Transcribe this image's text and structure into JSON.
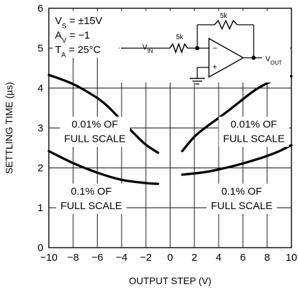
{
  "chart_data": {
    "type": "line",
    "title": "",
    "xlabel": "OUTPUT STEP (V)",
    "ylabel": "SETTLING TIME (µs)",
    "xlim": [
      -10,
      10
    ],
    "ylim": [
      0,
      6
    ],
    "xticks": [
      -10,
      -8,
      -6,
      -4,
      -2,
      0,
      2,
      4,
      6,
      8,
      10
    ],
    "xtick_labels": [
      "−10",
      "−8",
      "−6",
      "−4",
      "−2",
      "0",
      "2",
      "4",
      "6",
      "8",
      "10"
    ],
    "yticks": [
      0,
      1,
      2,
      3,
      4,
      5,
      6
    ],
    "ytick_labels": [
      "0",
      "1",
      "2",
      "3",
      "4",
      "5",
      "6"
    ],
    "grid": true,
    "series": [
      {
        "label": "0.01% OF FULL SCALE",
        "label_lines": [
          "0.01% OF",
          "FULL SCALE"
        ],
        "side": "negative",
        "x": [
          -10,
          -8,
          -6,
          -5,
          -4,
          -3,
          -2,
          -1
        ],
        "y": [
          4.33,
          4.1,
          3.75,
          3.5,
          3.18,
          2.87,
          2.58,
          2.38
        ]
      },
      {
        "label": "0.01% OF FULL SCALE",
        "label_lines": [
          "0.01% OF",
          "FULL SCALE"
        ],
        "side": "positive",
        "x": [
          1,
          2,
          3,
          4,
          5,
          6,
          7,
          8,
          9,
          10
        ],
        "y": [
          2.42,
          2.78,
          3.03,
          3.25,
          3.48,
          3.72,
          3.95,
          4.12,
          4.25,
          4.3
        ]
      },
      {
        "label": "0.1% OF FULL SCALE",
        "label_lines": [
          "0.1% OF",
          "FULL SCALE"
        ],
        "side": "negative",
        "x": [
          -10,
          -8,
          -6,
          -4,
          -2,
          -1
        ],
        "y": [
          2.42,
          2.12,
          1.88,
          1.7,
          1.62,
          1.6
        ]
      },
      {
        "label": "0.1% OF FULL SCALE",
        "label_lines": [
          "0.1% OF",
          "FULL SCALE"
        ],
        "side": "positive",
        "x": [
          1,
          2,
          3,
          4,
          5,
          6,
          7,
          8,
          9,
          10
        ],
        "y": [
          1.83,
          1.86,
          1.9,
          1.96,
          2.03,
          2.11,
          2.2,
          2.3,
          2.42,
          2.57
        ]
      }
    ],
    "annotations": {
      "conditions": [
        "VS = ±15V",
        "AV = −1",
        "TA = 25°C"
      ],
      "circuit": {
        "input_label": "VIN",
        "output_label": "VOUT",
        "input_resistor": "5k",
        "feedback_resistor": "5k",
        "minus_sign": "−",
        "plus_sign": "+"
      }
    }
  }
}
